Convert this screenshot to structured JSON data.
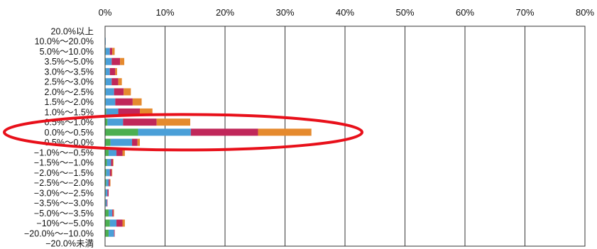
{
  "chart_data": {
    "type": "bar",
    "orientation": "horizontal",
    "stacked": true,
    "title": "",
    "xlabel": "",
    "ylabel": "",
    "xlim": [
      0,
      80
    ],
    "x_ticks": [
      "0%",
      "10%",
      "20%",
      "30%",
      "40%",
      "50%",
      "60%",
      "70%",
      "80%"
    ],
    "grid": "vertical",
    "categories": [
      "20.0%以上",
      "10.0%〜20.0%",
      "5.0%〜10.0%",
      "3.5%〜5.0%",
      "3.0%〜3.5%",
      "2.5%〜3.0%",
      "2.0%〜2.5%",
      "1.5%〜2.0%",
      "1.0%〜1.5%",
      "0.5%〜1.0%",
      "0.0%〜0.5%",
      "−0.5%〜0.0%",
      "−1.0%〜−0.5%",
      "−1.5%〜−1.0%",
      "−2.0%〜−1.5%",
      "−2.5%〜−2.0%",
      "−3.0%〜−2.5%",
      "−3.5%〜−3.0%",
      "−5.0%〜−3.5%",
      "−10%〜−5.0%",
      "−20.0%〜−10.0%",
      "−20.0%未満"
    ],
    "series": [
      {
        "color": "#4caf50",
        "values": [
          0,
          0,
          0.1,
          0.1,
          0.1,
          0.1,
          0.1,
          0.1,
          0.2,
          0.4,
          5.5,
          0.9,
          0.6,
          0.3,
          0.2,
          0.2,
          0.1,
          0.1,
          0.6,
          0.8,
          0.6,
          0
        ]
      },
      {
        "color": "#4a9fd8",
        "values": [
          0,
          0.1,
          0.7,
          1.0,
          0.7,
          1.0,
          1.4,
          1.6,
          2.0,
          2.6,
          8.8,
          3.6,
          1.3,
          0.7,
          0.6,
          0.4,
          0.3,
          0.2,
          0.6,
          1.1,
          0.9,
          0
        ]
      },
      {
        "color": "#c0275a",
        "values": [
          0,
          0,
          0.4,
          1.4,
          0.9,
          1.1,
          1.6,
          2.9,
          3.6,
          5.6,
          11.2,
          0.9,
          1.0,
          0.3,
          0.3,
          0.2,
          0.2,
          0.1,
          0.2,
          1.0,
          0.1,
          0
        ]
      },
      {
        "color": "#e58a2e",
        "values": [
          0,
          0,
          0.4,
          0.7,
          0.3,
          0.6,
          1.2,
          1.5,
          2.1,
          5.6,
          8.9,
          0.4,
          0.4,
          0.1,
          0.1,
          0.1,
          0,
          0,
          0.1,
          0.4,
          0,
          0
        ]
      }
    ],
    "annotation": {
      "shape": "ellipse",
      "color": "#e8101a",
      "target": "0.0%〜0.5%"
    }
  }
}
